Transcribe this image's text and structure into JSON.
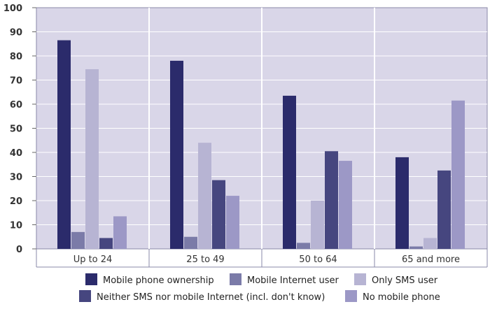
{
  "chart_data": {
    "type": "bar",
    "categories": [
      "Up to 24",
      "25 to 49",
      "50 to 64",
      "65 and more"
    ],
    "ylim": [
      0,
      100
    ],
    "yticks": [
      0,
      10,
      20,
      30,
      40,
      50,
      60,
      70,
      80,
      90,
      100
    ],
    "grid": true,
    "legend_position": "bottom",
    "plot_background": "#d9d6e8",
    "series": [
      {
        "name": "Mobile phone ownership",
        "color": "#2b2b6b",
        "values": [
          86.5,
          78,
          63.5,
          38
        ]
      },
      {
        "name": "Mobile Internet user",
        "color": "#7b7ba8",
        "values": [
          7,
          5,
          2.5,
          1
        ]
      },
      {
        "name": "Only SMS user",
        "color": "#b7b4d3",
        "values": [
          74.5,
          44,
          20,
          4.5
        ]
      },
      {
        "name": "Neither SMS nor mobile Internet (incl. don't know)",
        "color": "#46467f",
        "values": [
          4.5,
          28.5,
          40.5,
          32.5
        ]
      },
      {
        "name": "No mobile phone",
        "color": "#9c98c6",
        "values": [
          13.5,
          22,
          36.5,
          61.5
        ]
      }
    ]
  }
}
